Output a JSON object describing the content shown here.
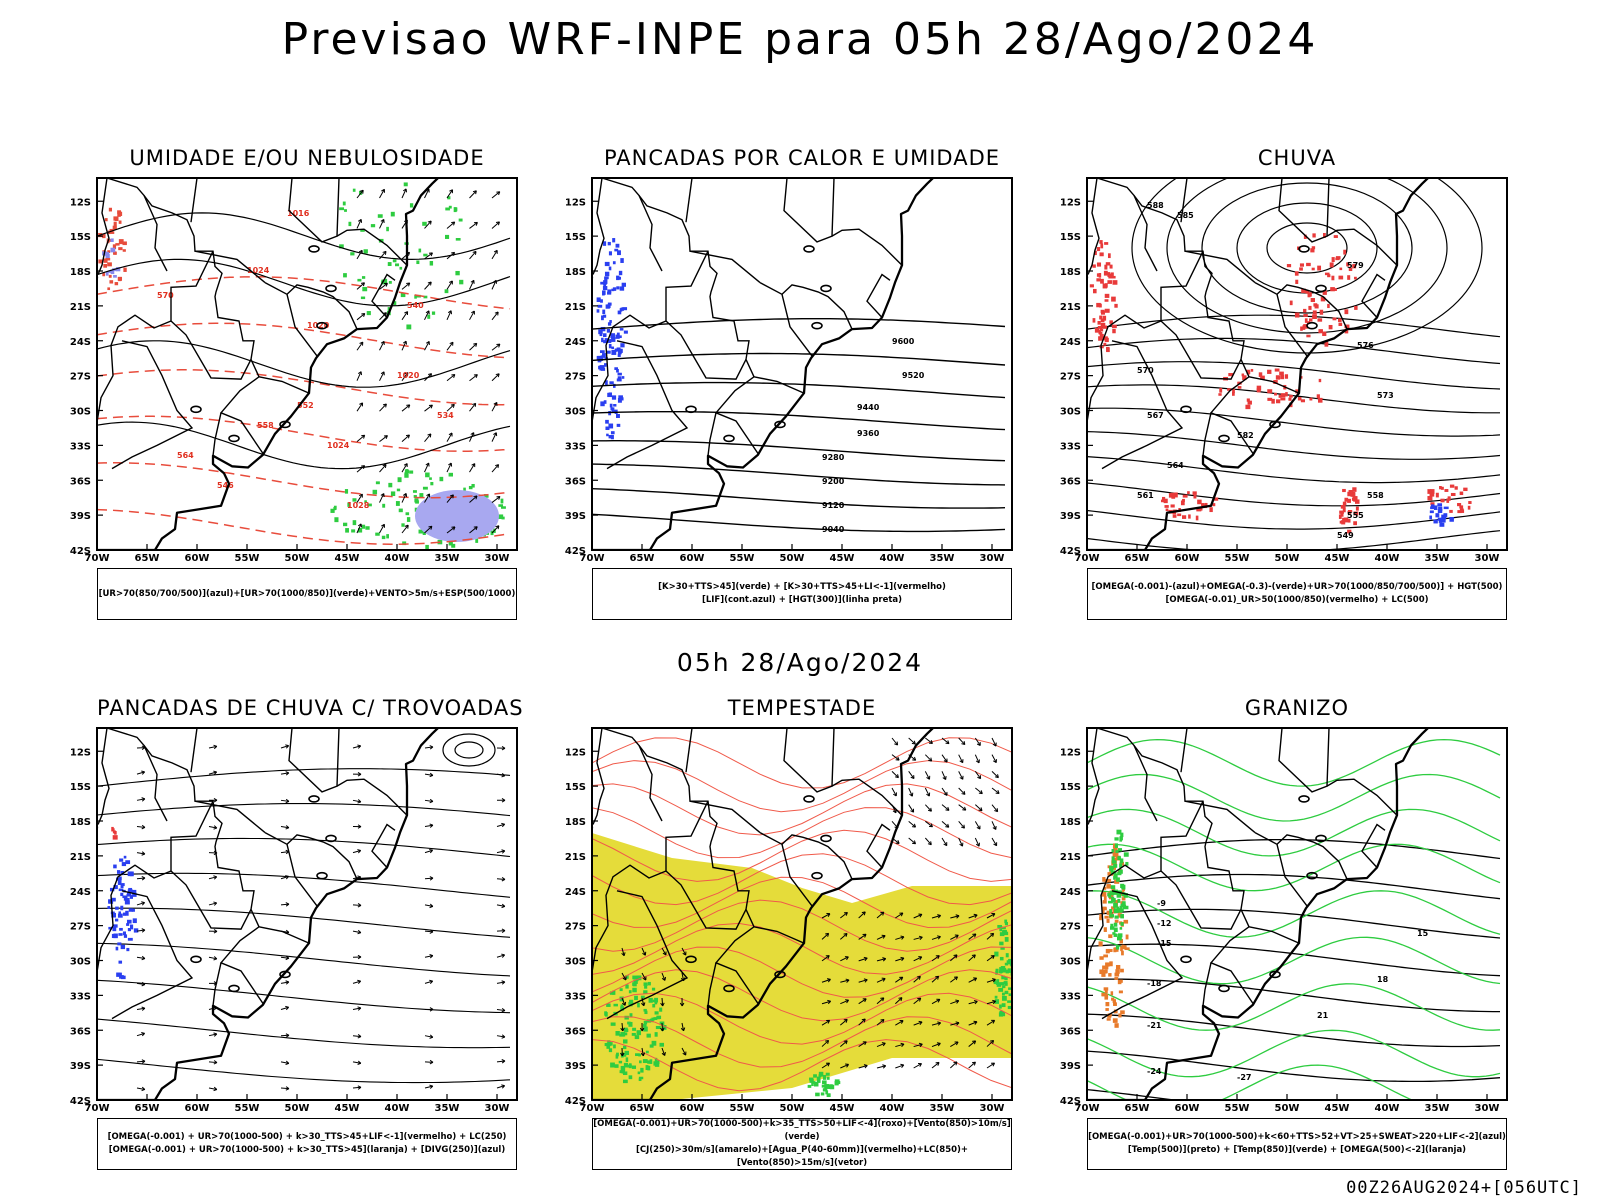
{
  "title": "Previsao WRF-INPE  para 05h 28/Ago/2024",
  "mid_date": "05h 28/Ago/2024",
  "footer": "00Z26AUG2024+[056UTC]",
  "axes": {
    "lat_labels": [
      "12S",
      "15S",
      "18S",
      "21S",
      "24S",
      "27S",
      "30S",
      "33S",
      "36S",
      "39S",
      "42S"
    ],
    "lon_labels": [
      "70W",
      "65W",
      "60W",
      "55W",
      "50W",
      "45W",
      "40W",
      "35W",
      "30W"
    ]
  },
  "panels": [
    {
      "title": "UMIDADE E/OU NEBULOSIDADE",
      "legend": [
        "[UR>70(850/700/500)](azul)+[UR>70(1000/850)](verde)+VENTO>5m/s+ESP(500/1000)"
      ],
      "labels": [
        "1016",
        "1020",
        "1024",
        "1028",
        "1024",
        "1020",
        "552",
        "546",
        "540",
        "534",
        "564",
        "558",
        "570"
      ]
    },
    {
      "title": "PANCADAS POR CALOR E UMIDADE",
      "legend": [
        "[K>30+TTS>45](verde) + [K>30+TTS>45+LI<-1](vermelho)",
        "[LIF](cont.azul) + [HGT(300)](linha preta)"
      ],
      "labels": [
        "9600",
        "9520",
        "9440",
        "9360",
        "9280",
        "9200",
        "9120",
        "9040"
      ]
    },
    {
      "title": "CHUVA",
      "legend": [
        "[OMEGA(-0.001)-(azul)+OMEGA(-0.3)-(verde)+UR>70(1000/850/700/500)] + HGT(500)",
        "[OMEGA(-0.01)_UR>50(1000/850)(vermelho) + LC(500)"
      ],
      "labels": [
        "588",
        "585",
        "582",
        "579",
        "576",
        "573",
        "570",
        "567",
        "564",
        "561",
        "558",
        "555",
        "549"
      ]
    },
    {
      "title": "PANCADAS DE CHUVA C/ TROVOADAS",
      "legend": [
        "[OMEGA(-0.001) + UR>70(1000-500) + k>30_TTS>45+LIF<-1](vermelho) + LC(250)",
        "[OMEGA(-0.001) + UR>70(1000-500) + k>30_TTS>45](laranja) + [DIVG(250)](azul)"
      ],
      "labels": []
    },
    {
      "title": "TEMPESTADE",
      "legend": [
        "[OMEGA(-0.001)+UR>70(1000-500)+k>35_TTS>50+LIF<-4](roxo)+[Vento(850)>10m/s](verde)",
        "[CJ(250)>30m/s](amarelo)+[Agua_P(40-60mm)](vermelho)+LC(850)+[Vento(850)>15m/s](vetor)"
      ],
      "labels": []
    },
    {
      "title": "GRANIZO",
      "legend": [
        "[OMEGA(-0.001)+UR>70(1000-500)+k<60+TTS>52+VT>25+SWEAT>220+LIF<-2](azul)",
        "[Temp(500)](preto) + [Temp(850)](verde) + [OMEGA(500)<-2](laranja)"
      ],
      "labels": [
        "-9",
        "-12",
        "-15",
        "-18",
        "-21",
        "-24",
        "-27",
        "15",
        "18",
        "21"
      ]
    }
  ]
}
